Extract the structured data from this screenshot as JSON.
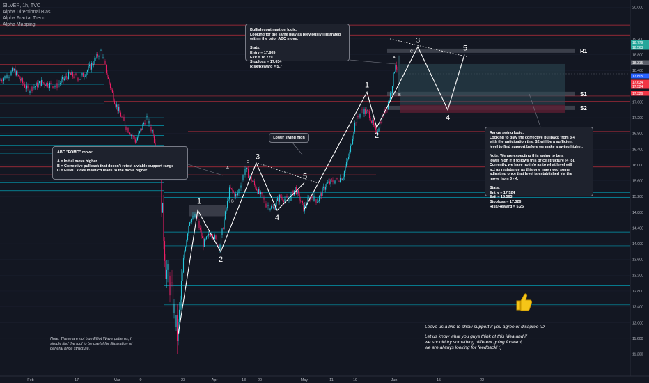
{
  "legend": {
    "symbol": "SILVER, 1h, TVC",
    "indicators": [
      "Alpha Directional Bias",
      "Alpha Fractal Trend",
      "Alpha Mapping"
    ]
  },
  "notes": {
    "bullish": "Bullish continuation logic:\nLooking for the same play as previously illustrated\nwithin the prior ABC move.\n\nStats:\nEntry = 17.805\nExit = 18.779\nStoploss = 17.634\nRisk/Reward = 5.7",
    "abc": "ABC \"FOMO\" move:\n\nA = Initial move higher\nB = Corrective pullback that doesn't retest a viable support range\nC = FOMO kicks in which leads to the move higher",
    "lower_swing": "Lower swing high",
    "range": "Range swing logic:\nLooking to play the corrective pullback from 3-4\nwith the anticipation that S2 will be a sufficient\nlevel to find support before we make a swing higher.\n\nNote: We are expecting this swing to be a\nlower high if it follows this price structure (4 -5).\nCurrently, we have no info as to what level will\nact as resistance as this one may need some\nadjusting once that level is established via the\nmove from 3 - 4.\n\nStats:\nEntry = 17.524\nExit = 18.563\nStoploss = 17.326\nRisk/Reward = 5.25",
    "disclaimer": "Note: These are not true Elliot Wave patterns, I\nsimply find the tool to be useful for illustration of\ngeneral price structure.",
    "like": "Leave us a like to show support if you agree or disagree :D",
    "feedback": "Let us know what you guys think of this idea and if\nwe should try something different going forward,\nwe are always looking for feedback! :)"
  },
  "level_labels": [
    "R1",
    "S1",
    "S2"
  ],
  "colors": {
    "background": "#131722",
    "support_line": "#00bcd4",
    "resistance_line": "#f23645",
    "bull_candle": "#26c6da",
    "bear_candle": "#e91e63",
    "wave_line": "#ffffff",
    "target_zone": "#2d4a55",
    "stop_zone": "#5c1f33"
  },
  "chart_data": {
    "type": "candlestick",
    "symbol": "SILVER",
    "timeframe": "1h",
    "y_ticks": [
      "20.000",
      "19.200",
      "18.800",
      "18.400",
      "18.000",
      "17.600",
      "17.200",
      "16.800",
      "16.400",
      "16.000",
      "15.600",
      "15.200",
      "14.800",
      "14.400",
      "14.000",
      "13.600",
      "13.200",
      "12.800",
      "12.400",
      "12.000",
      "11.600",
      "11.200"
    ],
    "y_tick_values": [
      20.0,
      19.2,
      18.8,
      18.4,
      18.0,
      17.6,
      17.2,
      16.8,
      16.4,
      16.0,
      15.6,
      15.2,
      14.8,
      14.4,
      14.0,
      13.6,
      13.2,
      12.8,
      12.4,
      12.0,
      11.6,
      11.2
    ],
    "ylim": [
      11.05,
      20.1
    ],
    "x_ticks": [
      "Feb",
      "17",
      "Mar",
      "9",
      "23",
      "Apr",
      "13",
      "20",
      "May",
      "11",
      "19",
      "Jun",
      "15",
      "22"
    ],
    "price_labels": [
      {
        "value": 18.779,
        "text": "18.779"
      },
      {
        "value": 18.563,
        "text": "18.563"
      },
      {
        "value": 18.315,
        "text": "18.315"
      },
      {
        "value": 17.805,
        "text": "17.805"
      },
      {
        "value": 17.634,
        "text": "17.634"
      },
      {
        "value": 17.524,
        "text": "17.524"
      },
      {
        "value": 17.326,
        "text": "17.326"
      }
    ],
    "key_levels": [
      {
        "label": "R1",
        "value": 18.9
      },
      {
        "label": "S1",
        "value": 17.805
      },
      {
        "label": "S2",
        "value": 17.45
      }
    ],
    "trades": [
      {
        "name": "Bullish continuation",
        "entry": 17.805,
        "exit": 18.779,
        "stoploss": 17.634,
        "risk_reward": 5.7
      },
      {
        "name": "Range swing",
        "entry": 17.524,
        "exit": 18.563,
        "stoploss": 17.326,
        "risk_reward": 5.25
      }
    ],
    "wave_labels": [
      "1",
      "2",
      "3",
      "4",
      "5",
      "1",
      "2",
      "3",
      "4",
      "5"
    ],
    "abc_labels": [
      "A",
      "B",
      "C",
      "A",
      "B",
      "C"
    ]
  }
}
